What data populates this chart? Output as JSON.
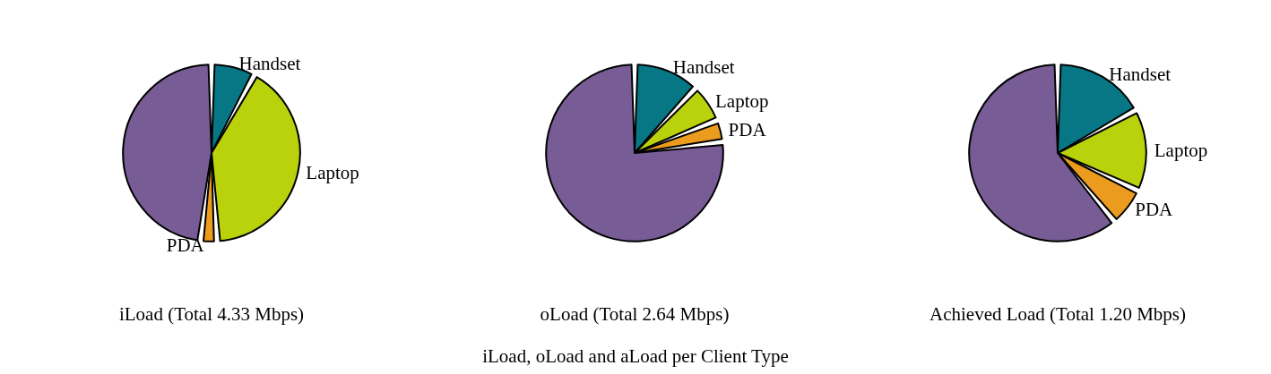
{
  "chart_data": [
    {
      "type": "pie",
      "title": "iLoad (Total 4.33 Mbps)",
      "categories": [
        "Handset",
        "Laptop",
        "PDA",
        null
      ],
      "values": [
        8,
        41,
        3,
        48
      ],
      "colors": [
        "#077785",
        "#bad20c",
        "#eb9c1e",
        "#785c96"
      ]
    },
    {
      "type": "pie",
      "title": "oLoad (Total 2.64 Mbps)",
      "categories": [
        "Handset",
        "Laptop",
        "PDA",
        null
      ],
      "values": [
        12,
        7,
        4,
        77
      ],
      "colors": [
        "#077785",
        "#bad20c",
        "#eb9c1e",
        "#785c96"
      ],
      "annotations": [
        "iLoad, oLoad and aLoad per Client Type"
      ]
    },
    {
      "type": "pie",
      "title": "Achieved Load (Total 1.20 Mbps)",
      "categories": [
        "Handset",
        "Laptop",
        "PDA",
        null
      ],
      "values": [
        17,
        15,
        7,
        61
      ],
      "colors": [
        "#077785",
        "#bad20c",
        "#eb9c1e",
        "#785c96"
      ]
    }
  ]
}
